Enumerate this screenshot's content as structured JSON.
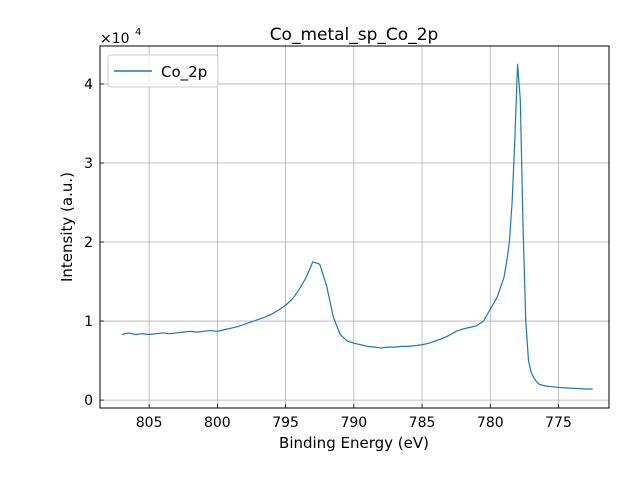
{
  "chart_data": {
    "type": "line",
    "title": "Co_metal_sp_Co_2p",
    "xlabel": "Binding Energy (eV)",
    "ylabel": "Intensity (a.u.)",
    "x_axis_reversed": true,
    "xlim": [
      808.6,
      771.3
    ],
    "ylim": [
      -1000,
      44800
    ],
    "y_multiplier_label": "×10",
    "y_multiplier_exponent": "4",
    "x_ticks": [
      805,
      800,
      795,
      790,
      785,
      780,
      775
    ],
    "y_ticks": [
      0,
      1,
      2,
      3,
      4
    ],
    "y_tick_unit": 10000,
    "grid": true,
    "legend_position": "top-left",
    "series": [
      {
        "name": "Co_2p",
        "color": "#1f77b4",
        "x": [
          807.0,
          806.5,
          806.0,
          805.5,
          805.0,
          804.5,
          804.0,
          803.5,
          803.0,
          802.5,
          802.0,
          801.5,
          801.0,
          800.5,
          800.0,
          799.5,
          799.0,
          798.5,
          798.0,
          797.5,
          797.0,
          796.5,
          796.0,
          795.5,
          795.0,
          794.5,
          794.0,
          793.5,
          793.0,
          792.5,
          792.0,
          791.5,
          791.0,
          790.5,
          790.0,
          789.5,
          789.0,
          788.5,
          788.0,
          787.5,
          787.0,
          786.5,
          786.0,
          785.5,
          785.0,
          784.5,
          784.0,
          783.5,
          783.0,
          782.5,
          782.0,
          781.5,
          781.0,
          780.5,
          780.0,
          779.5,
          779.0,
          778.8,
          778.6,
          778.4,
          778.2,
          778.0,
          777.8,
          777.6,
          777.4,
          777.2,
          777.0,
          776.8,
          776.6,
          776.4,
          776.2,
          776.0,
          775.5,
          775.0,
          774.5,
          774.0,
          773.5,
          773.0,
          772.5
        ],
        "y": [
          8300,
          8500,
          8300,
          8400,
          8300,
          8400,
          8500,
          8400,
          8500,
          8600,
          8700,
          8600,
          8700,
          8800,
          8700,
          8900,
          9100,
          9300,
          9600,
          9900,
          10200,
          10500,
          10900,
          11400,
          12000,
          12800,
          14000,
          15500,
          17500,
          17200,
          14500,
          10500,
          8300,
          7500,
          7200,
          7000,
          6800,
          6700,
          6600,
          6700,
          6700,
          6800,
          6800,
          6900,
          7000,
          7200,
          7500,
          7800,
          8200,
          8700,
          9000,
          9200,
          9400,
          10000,
          11500,
          13000,
          15500,
          17500,
          20000,
          25000,
          33000,
          42500,
          38000,
          22000,
          10000,
          5000,
          3500,
          2800,
          2300,
          2000,
          1900,
          1800,
          1700,
          1600,
          1550,
          1500,
          1450,
          1400,
          1400
        ]
      }
    ]
  }
}
